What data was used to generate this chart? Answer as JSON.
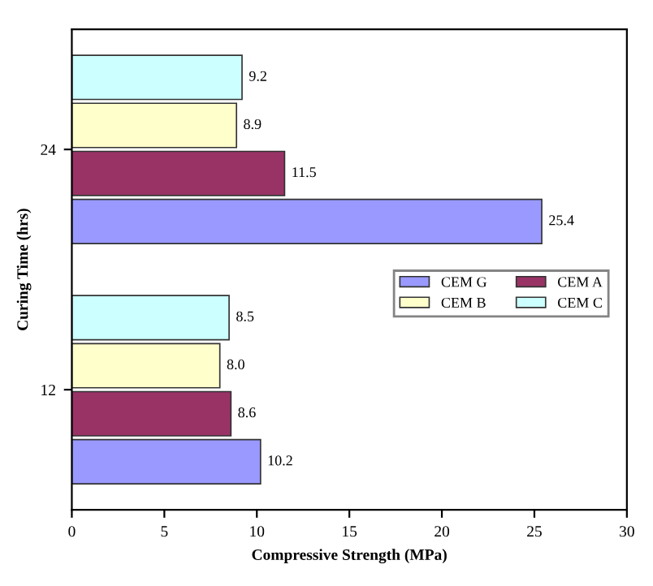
{
  "chart_data": {
    "type": "bar",
    "orientation": "horizontal",
    "xlabel": "Compressive Strength (MPa)",
    "ylabel": "Curing Time (hrs)",
    "categories": [
      "24",
      "12"
    ],
    "series": [
      {
        "name": "CEM G",
        "color": "#9999ff",
        "values": [
          25.4,
          10.2
        ],
        "value_labels": [
          "25.4",
          "10.2"
        ]
      },
      {
        "name": "CEM A",
        "color": "#993366",
        "values": [
          11.5,
          8.6
        ],
        "value_labels": [
          "11.5",
          "8.6"
        ]
      },
      {
        "name": "CEM B",
        "color": "#ffffcc",
        "values": [
          8.9,
          8.0
        ],
        "value_labels": [
          "8.9",
          "8.0"
        ]
      },
      {
        "name": "CEM C",
        "color": "#ccffff",
        "values": [
          9.2,
          8.5
        ],
        "value_labels": [
          "9.2",
          "8.5"
        ]
      }
    ],
    "xlim": [
      0,
      30
    ],
    "xticks": [
      0,
      5,
      10,
      15,
      20,
      25,
      30
    ],
    "grid": false,
    "legend": "right"
  }
}
